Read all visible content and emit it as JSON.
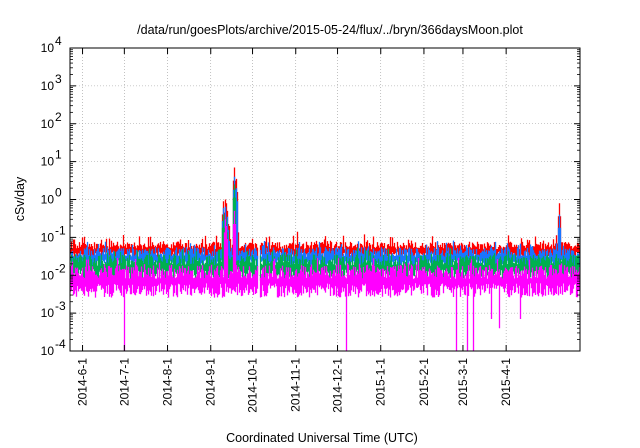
{
  "chart_data": {
    "type": "line",
    "title": "/data/run/goesPlots/archive/2015-05-24/flux/../bryn/366daysMoon.plot",
    "xlabel": "Coordinated Universal Time (UTC)",
    "ylabel": "cSv/day",
    "yscale": "log",
    "ylim": [
      0.0001,
      10000
    ],
    "xlim": [
      "2014-05-23",
      "2015-05-24"
    ],
    "grid": true,
    "y_ticks": [
      {
        "value": 0.0001,
        "base": "10",
        "exp": "-4"
      },
      {
        "value": 0.001,
        "base": "10",
        "exp": "-3"
      },
      {
        "value": 0.01,
        "base": "10",
        "exp": "-2"
      },
      {
        "value": 0.1,
        "base": "10",
        "exp": "-1"
      },
      {
        "value": 1,
        "base": "10",
        "exp": "0"
      },
      {
        "value": 10,
        "base": "10",
        "exp": "1"
      },
      {
        "value": 100,
        "base": "10",
        "exp": "2"
      },
      {
        "value": 1000,
        "base": "10",
        "exp": "3"
      },
      {
        "value": 10000,
        "base": "10",
        "exp": "4"
      }
    ],
    "x_ticks": [
      "2014-6-1",
      "2014-7-1",
      "2014-8-1",
      "2014-9-1",
      "2014-10-1",
      "2014-11-1",
      "2014-12-1",
      "2015-1-1",
      "2015-2-1",
      "2015-3-1",
      "2015-4-1"
    ],
    "series": [
      {
        "color": "#ff0000",
        "baseline": 0.045,
        "events": [
          {
            "date": "2014-09-10",
            "value": 0.9
          },
          {
            "date": "2014-09-11",
            "value": 1.0
          },
          {
            "date": "2014-09-12",
            "value": 0.8
          },
          {
            "date": "2014-09-13",
            "value": 0.5
          },
          {
            "date": "2014-09-14",
            "value": 0.2
          },
          {
            "date": "2014-09-18",
            "value": 7.0
          },
          {
            "date": "2014-09-19",
            "value": 3.5
          },
          {
            "date": "2014-09-20",
            "value": 0.3
          },
          {
            "date": "2014-11-02",
            "value": 0.14
          },
          {
            "date": "2014-12-20",
            "value": 0.12
          },
          {
            "date": "2015-05-09",
            "value": 0.8
          }
        ]
      },
      {
        "color": "#1a75ff",
        "baseline": 0.028,
        "events": [
          {
            "date": "2014-09-10",
            "value": 0.6
          },
          {
            "date": "2014-09-11",
            "value": 0.65
          },
          {
            "date": "2014-09-13",
            "value": 0.35
          },
          {
            "date": "2014-09-18",
            "value": 4.0
          },
          {
            "date": "2014-09-19",
            "value": 2.0
          },
          {
            "date": "2015-05-09",
            "value": 0.4
          }
        ]
      },
      {
        "color": "#00b050",
        "baseline": 0.016,
        "events": [
          {
            "date": "2014-09-10",
            "value": 0.4
          },
          {
            "date": "2014-09-12",
            "value": 0.3
          },
          {
            "date": "2014-09-18",
            "value": 2.5
          }
        ]
      },
      {
        "color": "#ff00ff",
        "baseline": 0.007,
        "events": [
          {
            "date": "2014-09-11",
            "value": 0.3
          },
          {
            "date": "2014-09-12",
            "value": 0.2
          },
          {
            "date": "2014-09-18",
            "value": 0.5
          }
        ],
        "dips": [
          {
            "date": "2014-07-01",
            "value": 0.0001
          },
          {
            "date": "2014-12-07",
            "value": 0.0001
          },
          {
            "date": "2015-02-24",
            "value": 0.0001
          },
          {
            "date": "2015-03-04",
            "value": 0.0001
          },
          {
            "date": "2015-03-08",
            "value": 0.0001
          },
          {
            "date": "2015-03-21",
            "value": 0.0007
          },
          {
            "date": "2015-03-27",
            "value": 0.0004
          },
          {
            "date": "2015-04-11",
            "value": 0.0007
          }
        ]
      }
    ]
  }
}
